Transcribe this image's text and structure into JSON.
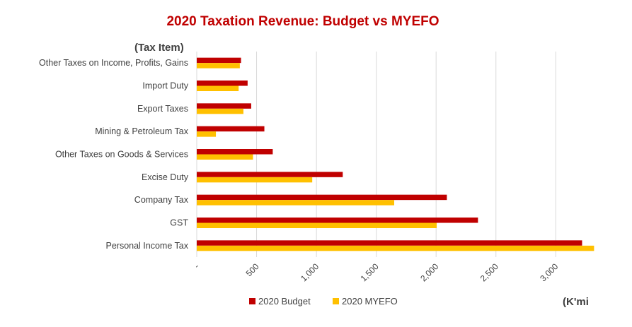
{
  "chart_data": {
    "type": "bar",
    "orientation": "horizontal",
    "title": "2020 Taxation Revenue: Budget vs MYEFO",
    "ylabel": "(Tax Item)",
    "xlabel": "(K'mi",
    "categories": [
      "Other Taxes on Income, Profits, Gains",
      "Import Duty",
      "Export Taxes",
      "Mining & Petroleum Tax",
      "Other Taxes on Goods & Services",
      "Excise Duty",
      "Company Tax",
      "GST",
      "Personal Income Tax"
    ],
    "series": [
      {
        "name": "2020 Budget",
        "color": "#c00000",
        "values": [
          370,
          425,
          455,
          565,
          635,
          1220,
          2090,
          2350,
          3220
        ]
      },
      {
        "name": "2020 MYEFO",
        "color": "#ffc000",
        "values": [
          360,
          350,
          390,
          160,
          470,
          965,
          1650,
          2005,
          3320
        ]
      }
    ],
    "xlim": [
      0,
      3300
    ],
    "xticks": [
      0,
      500,
      1000,
      1500,
      2000,
      2500,
      3000
    ],
    "xtick_labels": [
      "-",
      "500",
      "1,000",
      "1,500",
      "2,000",
      "2,500",
      "3,000"
    ],
    "grid": true,
    "legend_position": "bottom"
  }
}
